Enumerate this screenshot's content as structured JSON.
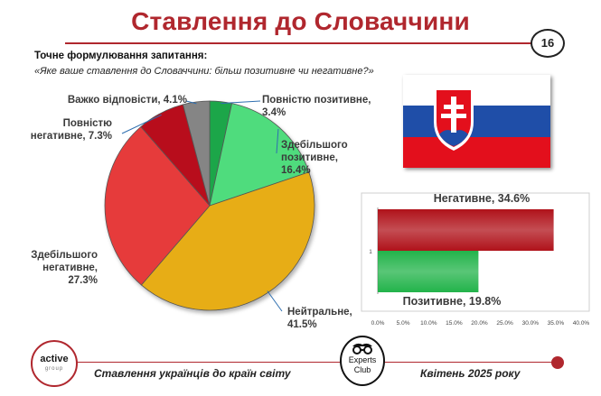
{
  "header": {
    "title": "Ставлення до Словаччини",
    "page_number": "16",
    "question_label": "Точне формулювання запитання:",
    "question_text": "«Яке ваше ставлення до Словаччини: більш позитивне чи негативне?»"
  },
  "chart_data": [
    {
      "type": "pie",
      "slices": [
        {
          "label": [
            "Повністю позитивне,",
            "3.4%"
          ],
          "value": 3.4,
          "color": "#1fa64a"
        },
        {
          "label": [
            "Здебільшого",
            "позитивне,",
            "16.4%"
          ],
          "value": 16.4,
          "color": "#4fdc7d"
        },
        {
          "label": [
            "Нейтральне,",
            "41.5%"
          ],
          "value": 41.5,
          "color": "#e7ad16"
        },
        {
          "label": [
            "Здебільшого",
            "негативне,",
            "27.3%"
          ],
          "value": 27.3,
          "color": "#e63b3b"
        },
        {
          "label": [
            "Повністю",
            "негативне, 7.3%"
          ],
          "value": 7.3,
          "color": "#b80f1a"
        },
        {
          "label": [
            "Важко відповісти, 4.1%"
          ],
          "value": 4.1,
          "color": "#858585"
        }
      ]
    },
    {
      "type": "bar",
      "orientation": "horizontal",
      "categories": [
        "1"
      ],
      "series": [
        {
          "name": "Негативне, 34.6%",
          "value": 34.6,
          "color": "#b0121a"
        },
        {
          "name": "Позитивне, 19.8%",
          "value": 19.8,
          "color": "#22b34a"
        }
      ],
      "xlim": [
        0,
        40
      ],
      "xticks": [
        "0.0%",
        "5.0%",
        "10.0%",
        "15.0%",
        "20.0%",
        "25.0%",
        "30.0%",
        "35.0%",
        "40.0%"
      ],
      "grid": false
    }
  ],
  "footer": {
    "left_text": "Ставлення українців до країн світу",
    "right_text": "Квітень 2025 року",
    "logo_left_main": "active",
    "logo_left_sub": "group",
    "logo_right_line1": "Experts",
    "logo_right_line2": "Club"
  },
  "icons": {
    "flag": "slovakia-flag-icon",
    "logo_left": "active-group-logo",
    "logo_right": "experts-club-logo"
  }
}
